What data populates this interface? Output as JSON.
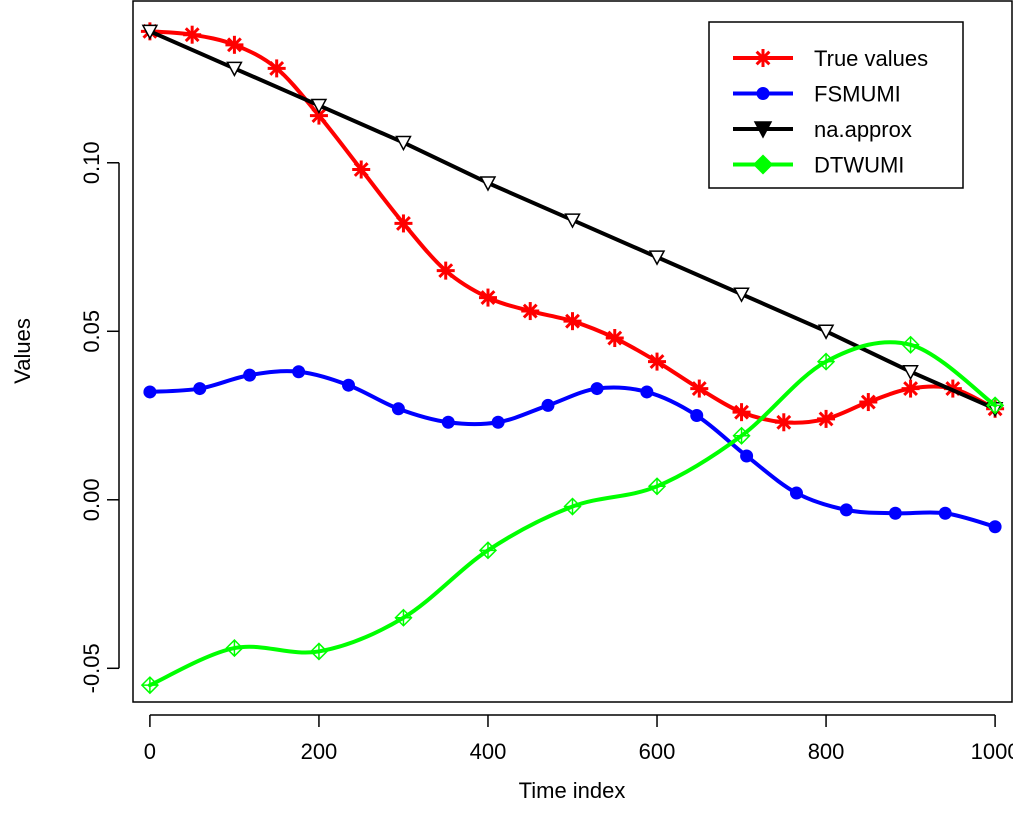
{
  "chart_data": {
    "type": "line",
    "title": "",
    "xlabel": "Time index",
    "ylabel": "Values",
    "xlim": [
      -20,
      1020
    ],
    "ylim": [
      -0.06,
      0.148
    ],
    "x_ticks": [
      0,
      200,
      400,
      600,
      800,
      1000
    ],
    "x_tick_labels": [
      "0",
      "200",
      "400",
      "600",
      "800",
      "1000"
    ],
    "y_ticks": [
      -0.05,
      0.0,
      0.05,
      0.1
    ],
    "y_tick_labels": [
      "-0.05",
      "0.00",
      "0.05",
      "0.10"
    ],
    "grid": false,
    "legend_position": "top-right",
    "series": [
      {
        "name": "True values",
        "color": "#ff0000",
        "marker": "asterisk",
        "x": [
          0,
          50,
          100,
          150,
          200,
          250,
          300,
          350,
          400,
          450,
          500,
          550,
          600,
          650,
          700,
          750,
          800,
          850,
          900,
          950,
          1000
        ],
        "y": [
          0.139,
          0.138,
          0.135,
          0.128,
          0.114,
          0.098,
          0.082,
          0.068,
          0.06,
          0.056,
          0.053,
          0.048,
          0.041,
          0.033,
          0.026,
          0.023,
          0.024,
          0.029,
          0.033,
          0.033,
          0.027
        ]
      },
      {
        "name": "FSMUMI",
        "color": "#0000ff",
        "marker": "circle",
        "x": [
          0,
          59,
          118,
          176,
          235,
          294,
          353,
          412,
          471,
          529,
          588,
          647,
          706,
          765,
          824,
          882,
          941,
          1000
        ],
        "y": [
          0.032,
          0.033,
          0.037,
          0.038,
          0.034,
          0.027,
          0.023,
          0.023,
          0.028,
          0.033,
          0.032,
          0.025,
          0.013,
          0.002,
          -0.003,
          -0.004,
          -0.004,
          -0.008
        ]
      },
      {
        "name": "na.approx",
        "color": "#000000",
        "marker": "triangle-down",
        "x": [
          0,
          100,
          200,
          300,
          400,
          500,
          600,
          700,
          800,
          900,
          1000
        ],
        "y": [
          0.139,
          0.128,
          0.117,
          0.106,
          0.094,
          0.083,
          0.072,
          0.061,
          0.05,
          0.038,
          0.027
        ]
      },
      {
        "name": "DTWUMI",
        "color": "#00ff00",
        "marker": "diamond-plus",
        "x": [
          0,
          100,
          200,
          300,
          400,
          500,
          600,
          700,
          800,
          900,
          1000
        ],
        "y": [
          -0.055,
          -0.044,
          -0.045,
          -0.035,
          -0.015,
          -0.002,
          0.004,
          0.019,
          0.041,
          0.046,
          0.028
        ]
      }
    ]
  }
}
